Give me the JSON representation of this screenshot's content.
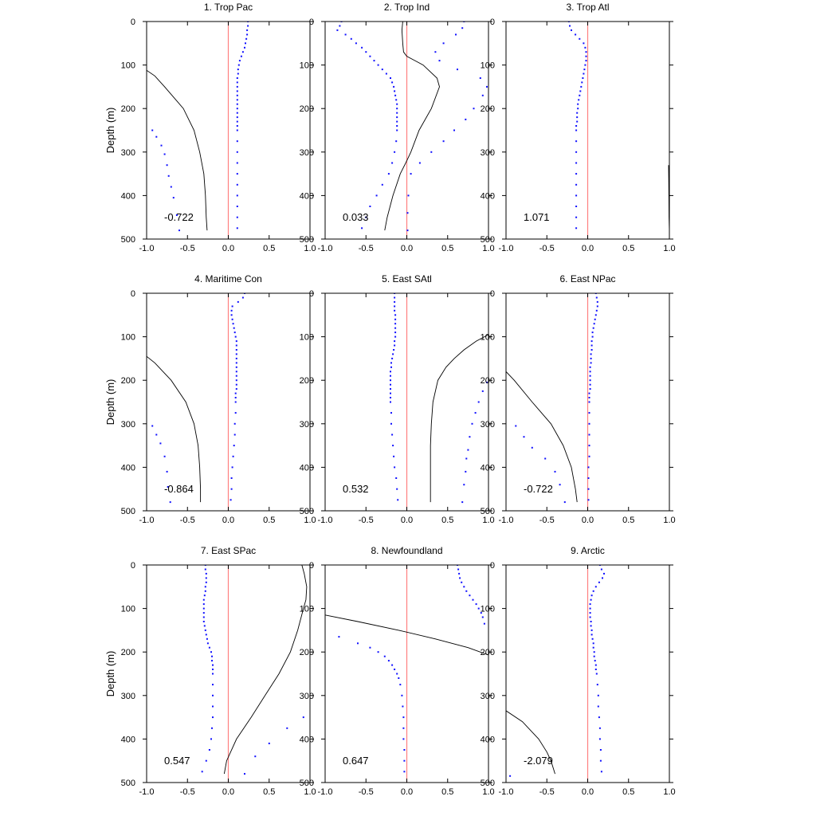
{
  "chart_data": {
    "type": "line+scatter",
    "panel_count": 9,
    "ylabel": "Depth (m)",
    "ylim": [
      500,
      0
    ],
    "xlim": [
      -1.0,
      1.0
    ],
    "x_ticks": [
      "-1.0",
      "-0.5",
      "0.0",
      "0.5",
      "1.0"
    ],
    "y_ticks": [
      "0",
      "100",
      "200",
      "300",
      "400",
      "500"
    ],
    "colors": {
      "line": "#000000",
      "dots": "#1010ff",
      "zero_line": "#ff8080",
      "axes": "#000000"
    },
    "dot_depths": [
      0,
      10,
      20,
      30,
      40,
      50,
      60,
      70,
      80,
      90,
      100,
      110,
      120,
      130,
      140,
      150,
      160,
      170,
      180,
      190,
      200,
      210,
      220,
      230,
      240,
      250,
      275,
      300,
      325,
      350,
      375,
      400,
      425,
      450,
      475
    ],
    "panels": [
      {
        "title": "1. Trop Pac",
        "value": "-0.722",
        "line": {
          "depth": [
            112,
            125,
            150,
            200,
            250,
            300,
            350,
            400,
            450,
            480
          ],
          "x": [
            -1.0,
            -0.9,
            -0.78,
            -0.55,
            -0.42,
            -0.35,
            -0.3,
            -0.28,
            -0.27,
            -0.26
          ]
        },
        "dots_a": {
          "x": [
            0.24,
            0.24,
            0.23,
            0.23,
            0.22,
            0.21,
            0.2,
            0.18,
            0.16,
            0.14,
            0.13,
            0.12,
            0.12,
            0.11,
            0.11,
            0.11,
            0.11,
            0.11,
            0.11,
            0.11,
            0.11,
            0.11,
            0.11,
            0.11,
            0.11,
            0.11,
            0.11,
            0.11,
            0.11,
            0.11,
            0.11,
            0.11,
            0.11,
            0.11,
            0.11
          ]
        },
        "dots_b": {
          "depth": [
            250,
            265,
            285,
            305,
            330,
            355,
            380,
            405,
            445,
            480
          ],
          "x": [
            -0.93,
            -0.88,
            -0.82,
            -0.78,
            -0.75,
            -0.73,
            -0.7,
            -0.67,
            -0.63,
            -0.6
          ]
        }
      },
      {
        "title": "2. Trop Ind",
        "value": "0.033",
        "line": {
          "depth": [
            0,
            20,
            50,
            70,
            80,
            90,
            100,
            130,
            150,
            200,
            250,
            300,
            320,
            350,
            400,
            450,
            480
          ],
          "x": [
            -0.05,
            -0.06,
            -0.05,
            -0.04,
            0.0,
            0.1,
            0.2,
            0.37,
            0.4,
            0.3,
            0.15,
            0.05,
            0.0,
            -0.08,
            -0.17,
            -0.24,
            -0.27
          ]
        },
        "dots_a": {
          "x": [
            -0.8,
            -0.82,
            -0.85,
            -0.75,
            -0.68,
            -0.62,
            -0.55,
            -0.5,
            -0.45,
            -0.4,
            -0.35,
            -0.3,
            -0.25,
            -0.2,
            -0.18,
            -0.16,
            -0.15,
            -0.14,
            -0.13,
            -0.12,
            -0.12,
            -0.12,
            -0.12,
            -0.12,
            -0.12,
            -0.12,
            -0.13,
            -0.15,
            -0.18,
            -0.22,
            -0.3,
            -0.37,
            -0.45,
            -0.5,
            -0.55
          ]
        },
        "dots_b": {
          "depth": [
            0,
            15,
            30,
            50,
            70,
            90,
            110,
            130,
            150,
            170,
            200,
            225,
            250,
            275,
            300,
            325,
            350,
            400,
            440,
            480
          ],
          "x": [
            0.7,
            0.68,
            0.6,
            0.45,
            0.35,
            0.4,
            0.62,
            0.9,
            0.98,
            0.93,
            0.82,
            0.72,
            0.58,
            0.45,
            0.3,
            0.16,
            0.05,
            0.02,
            0.01,
            0.01
          ]
        }
      },
      {
        "title": "3. Trop Atl",
        "value": "1.071",
        "line": {
          "depth": [
            330,
            360,
            400,
            450,
            480
          ],
          "x": [
            0.99,
            0.992,
            0.994,
            0.996,
            1.0
          ]
        },
        "dots_a": {
          "x": [
            -0.23,
            -0.22,
            -0.2,
            -0.15,
            -0.1,
            -0.05,
            -0.03,
            -0.02,
            -0.02,
            -0.02,
            -0.03,
            -0.04,
            -0.05,
            -0.06,
            -0.07,
            -0.08,
            -0.09,
            -0.1,
            -0.11,
            -0.12,
            -0.12,
            -0.13,
            -0.13,
            -0.13,
            -0.14,
            -0.14,
            -0.14,
            -0.14,
            -0.14,
            -0.14,
            -0.14,
            -0.14,
            -0.14,
            -0.14,
            -0.14
          ]
        },
        "dots_b": null
      },
      {
        "title": "4. Maritime Con",
        "value": "-0.864",
        "line": {
          "depth": [
            145,
            160,
            200,
            250,
            300,
            350,
            400,
            450,
            480
          ],
          "x": [
            -1.0,
            -0.9,
            -0.7,
            -0.52,
            -0.42,
            -0.37,
            -0.35,
            -0.34,
            -0.34
          ]
        },
        "dots_a": {
          "x": [
            0.2,
            0.18,
            0.12,
            0.05,
            0.04,
            0.04,
            0.05,
            0.06,
            0.07,
            0.08,
            0.09,
            0.1,
            0.1,
            0.1,
            0.1,
            0.1,
            0.1,
            0.1,
            0.1,
            0.1,
            0.1,
            0.1,
            0.1,
            0.09,
            0.09,
            0.09,
            0.09,
            0.08,
            0.08,
            0.07,
            0.06,
            0.05,
            0.04,
            0.04,
            0.03
          ]
        },
        "dots_b": {
          "depth": [
            305,
            325,
            345,
            375,
            410,
            445,
            480
          ],
          "x": [
            -0.93,
            -0.88,
            -0.83,
            -0.78,
            -0.75,
            -0.74,
            -0.71
          ]
        }
      },
      {
        "title": "5. East SAtl",
        "value": "0.532",
        "line": {
          "depth": [
            95,
            110,
            130,
            150,
            170,
            200,
            250,
            300,
            350,
            400,
            450,
            480
          ],
          "x": [
            1.0,
            0.85,
            0.7,
            0.58,
            0.48,
            0.38,
            0.32,
            0.3,
            0.29,
            0.29,
            0.29,
            0.29
          ]
        },
        "dots_a": {
          "x": [
            -0.15,
            -0.15,
            -0.15,
            -0.15,
            -0.15,
            -0.14,
            -0.14,
            -0.14,
            -0.14,
            -0.14,
            -0.14,
            -0.15,
            -0.15,
            -0.16,
            -0.17,
            -0.18,
            -0.19,
            -0.19,
            -0.2,
            -0.2,
            -0.2,
            -0.2,
            -0.2,
            -0.2,
            -0.2,
            -0.2,
            -0.19,
            -0.19,
            -0.18,
            -0.17,
            -0.16,
            -0.15,
            -0.13,
            -0.12,
            -0.11
          ]
        },
        "dots_b": {
          "depth": [
            205,
            225,
            250,
            275,
            300,
            330,
            360,
            380,
            410,
            440,
            480
          ],
          "x": [
            0.98,
            0.93,
            0.88,
            0.84,
            0.8,
            0.77,
            0.75,
            0.73,
            0.72,
            0.7,
            0.68
          ]
        }
      },
      {
        "title": "6. East NPac",
        "value": "-0.722",
        "line": {
          "depth": [
            180,
            200,
            250,
            300,
            350,
            400,
            450,
            480
          ],
          "x": [
            -1.0,
            -0.9,
            -0.68,
            -0.45,
            -0.3,
            -0.2,
            -0.15,
            -0.13
          ]
        },
        "dots_a": {
          "x": [
            0.1,
            0.11,
            0.12,
            0.12,
            0.11,
            0.1,
            0.09,
            0.08,
            0.07,
            0.06,
            0.06,
            0.05,
            0.05,
            0.05,
            0.04,
            0.04,
            0.04,
            0.03,
            0.03,
            0.03,
            0.03,
            0.03,
            0.03,
            0.02,
            0.02,
            0.02,
            0.02,
            0.02,
            0.02,
            0.02,
            0.02,
            0.01,
            0.01,
            0.01,
            0.01
          ]
        },
        "dots_b": {
          "depth": [
            305,
            330,
            355,
            380,
            410,
            440,
            480
          ],
          "x": [
            -0.88,
            -0.78,
            -0.68,
            -0.52,
            -0.4,
            -0.34,
            -0.28
          ]
        }
      },
      {
        "title": "7. East SPac",
        "value": "0.547",
        "line": {
          "depth": [
            0,
            20,
            50,
            80,
            100,
            150,
            200,
            250,
            300,
            350,
            400,
            450,
            480
          ],
          "x": [
            0.9,
            0.93,
            0.96,
            0.95,
            0.92,
            0.85,
            0.76,
            0.62,
            0.45,
            0.28,
            0.1,
            -0.02,
            -0.05
          ]
        },
        "dots_a": {
          "x": [
            -0.28,
            -0.28,
            -0.27,
            -0.27,
            -0.27,
            -0.28,
            -0.28,
            -0.29,
            -0.3,
            -0.3,
            -0.3,
            -0.3,
            -0.3,
            -0.3,
            -0.29,
            -0.28,
            -0.27,
            -0.26,
            -0.25,
            -0.23,
            -0.21,
            -0.2,
            -0.2,
            -0.19,
            -0.19,
            -0.19,
            -0.19,
            -0.19,
            -0.19,
            -0.19,
            -0.2,
            -0.21,
            -0.23,
            -0.27,
            -0.32
          ]
        },
        "dots_b": {
          "depth": [
            350,
            375,
            410,
            440,
            480
          ],
          "x": [
            0.92,
            0.72,
            0.5,
            0.33,
            0.2
          ]
        }
      },
      {
        "title": "8. Newfoundland",
        "value": "0.647",
        "line": {
          "depth": [
            115,
            130,
            150,
            170,
            190,
            207
          ],
          "x": [
            -1.0,
            -0.6,
            -0.1,
            0.35,
            0.75,
            1.0
          ]
        },
        "dots_a": {
          "x": [
            0.62,
            0.63,
            0.64,
            0.65,
            0.67,
            0.7,
            0.73,
            0.77,
            0.81,
            0.85,
            0.88,
            0.91,
            0.93,
            0.95
          ]
        },
        "dots_a_depth": [
          0,
          10,
          20,
          30,
          40,
          50,
          60,
          70,
          80,
          90,
          100,
          110,
          120,
          135
        ],
        "dots_b": {
          "depth": [
            165,
            180,
            190,
            200,
            210,
            220,
            230,
            240,
            250,
            260,
            275,
            300,
            325,
            350,
            375,
            400,
            425,
            450,
            475
          ],
          "x": [
            -0.83,
            -0.6,
            -0.45,
            -0.35,
            -0.27,
            -0.22,
            -0.18,
            -0.15,
            -0.12,
            -0.1,
            -0.08,
            -0.06,
            -0.05,
            -0.04,
            -0.04,
            -0.04,
            -0.03,
            -0.03,
            -0.03
          ]
        }
      },
      {
        "title": "9. Arctic",
        "value": "-2.079",
        "line": {
          "depth": [
            335,
            360,
            400,
            430,
            450,
            480
          ],
          "x": [
            -1.0,
            -0.8,
            -0.6,
            -0.5,
            -0.45,
            -0.4
          ]
        },
        "dots_a": {
          "x": [
            0.15,
            0.17,
            0.2,
            0.18,
            0.14,
            0.1,
            0.07,
            0.05,
            0.04,
            0.03,
            0.03,
            0.03,
            0.03,
            0.04,
            0.04,
            0.05,
            0.05,
            0.06,
            0.07,
            0.07,
            0.08,
            0.08,
            0.09,
            0.1,
            0.1,
            0.11,
            0.12,
            0.13,
            0.13,
            0.14,
            0.15,
            0.15,
            0.16,
            0.16,
            0.17
          ]
        },
        "dots_b": {
          "depth": [
            485
          ],
          "x": [
            -0.95
          ]
        }
      }
    ]
  }
}
